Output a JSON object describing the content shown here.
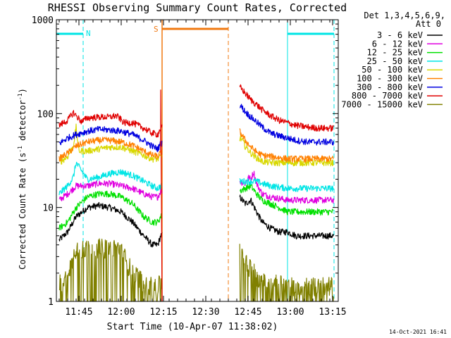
{
  "chart_data": {
    "type": "line",
    "title": "RHESSI Observing Summary Count Rates, Corrected",
    "xlabel": "Start Time (10-Apr-07 11:38:02)",
    "ylabel_main": "Corrected Count Rate (s",
    "ylabel_sup1": "-1",
    "ylabel_mid": " detector",
    "ylabel_sup2": "-1",
    "ylabel_end": ")",
    "yscale": "log",
    "xlim_minutes": [
      -1.0,
      99.0
    ],
    "ylim": [
      1,
      1000
    ],
    "x_ticks": [
      {
        "label": "11:45",
        "t": 7
      },
      {
        "label": "12:00",
        "t": 22
      },
      {
        "label": "12:15",
        "t": 37
      },
      {
        "label": "12:30",
        "t": 52
      },
      {
        "label": "12:45",
        "t": 67
      },
      {
        "label": "13:00",
        "t": 82
      },
      {
        "label": "13:15",
        "t": 97
      }
    ],
    "y_ticks": [
      {
        "label": "1",
        "v": 1
      },
      {
        "label": "10",
        "v": 10
      },
      {
        "label": "100",
        "v": 100
      },
      {
        "label": "1000",
        "v": 1000
      }
    ],
    "legend_header_1": "Det 1,3,4,5,6,9,",
    "legend_header_2": "Att 0",
    "legend_placement": "right",
    "timestamp": "14-Oct-2021 16:41",
    "night_marker": "N",
    "saa_marker": "S",
    "night_color": "#00e5e5",
    "saa_color": "#f07810",
    "night_intervals": [
      {
        "start": -1.0,
        "end": 8.5
      },
      {
        "start": 81.0,
        "end": 97.5
      }
    ],
    "saa_interval": {
      "start": 36.5,
      "end": 60.0
    },
    "data_gap": {
      "start": 36.5,
      "end": 64.0
    },
    "series": [
      {
        "name": "3 - 6 keV",
        "color": "#000000",
        "values_t": [
          0,
          3,
          6,
          10,
          14,
          18,
          22,
          26,
          30,
          33,
          35,
          36,
          64,
          66,
          68,
          70,
          72,
          75,
          78,
          81,
          84,
          88,
          92,
          97.5
        ],
        "values": [
          4.5,
          5.5,
          8,
          10,
          10.5,
          10,
          9,
          7,
          5,
          4,
          4,
          5,
          13,
          11,
          12,
          9,
          7,
          6,
          5.5,
          5.5,
          5,
          5,
          5,
          5
        ]
      },
      {
        "name": "6 - 12 keV",
        "color": "#e000e0",
        "values_t": [
          0,
          3,
          6,
          10,
          14,
          18,
          22,
          26,
          30,
          33,
          35,
          36,
          64,
          66,
          67,
          68,
          69,
          70,
          72,
          75,
          78,
          81,
          84,
          88,
          92,
          97.5
        ],
        "values": [
          12,
          14,
          17,
          17,
          18,
          18,
          17,
          16,
          14,
          13,
          13,
          15,
          19,
          18,
          21,
          20,
          24,
          18,
          14,
          13,
          12.5,
          12,
          12,
          12,
          12,
          12
        ]
      },
      {
        "name": "12 - 25 keV",
        "color": "#00e000",
        "values_t": [
          0,
          3,
          6,
          10,
          14,
          18,
          22,
          26,
          30,
          33,
          35,
          36,
          64,
          66,
          68,
          70,
          72,
          75,
          78,
          81,
          84,
          88,
          92,
          97.5
        ],
        "values": [
          6,
          7,
          10,
          13,
          14,
          14,
          13,
          11,
          8,
          7,
          7,
          8,
          15,
          16,
          17,
          14,
          12,
          11,
          10,
          9,
          9,
          9,
          9,
          9
        ]
      },
      {
        "name": "25 - 50 keV",
        "color": "#00e5e5",
        "values_t": [
          0,
          3,
          5,
          6,
          10,
          14,
          18,
          22,
          26,
          30,
          33,
          35,
          36,
          64,
          66,
          68,
          70,
          72,
          75,
          78,
          81,
          84,
          88,
          92,
          97.5
        ],
        "values": [
          14,
          17,
          21,
          30,
          20,
          21,
          23,
          24,
          22,
          19,
          17,
          16,
          17,
          19,
          19,
          19,
          19,
          18,
          17,
          16.5,
          16,
          16,
          16,
          16,
          16
        ]
      },
      {
        "name": "50 - 100 keV",
        "color": "#d8d800",
        "values_t": [
          0,
          3,
          5,
          6,
          7,
          10,
          14,
          18,
          22,
          26,
          30,
          33,
          35,
          36,
          64,
          65,
          66,
          68,
          70,
          72,
          75,
          78,
          81,
          84,
          88,
          92,
          97.5
        ],
        "values": [
          30,
          35,
          45,
          72,
          40,
          40,
          42,
          44,
          44,
          40,
          36,
          33,
          33,
          35,
          55,
          52,
          45,
          38,
          34,
          31,
          30,
          30,
          30,
          30,
          30,
          30,
          30
        ]
      },
      {
        "name": "100 - 300 keV",
        "color": "#ff8000",
        "values_t": [
          0,
          3,
          6,
          10,
          14,
          18,
          22,
          26,
          30,
          33,
          35,
          36,
          64,
          66,
          68,
          70,
          72,
          75,
          78,
          81,
          84,
          88,
          92,
          97.5
        ],
        "values": [
          33,
          38,
          45,
          50,
          52,
          52,
          50,
          46,
          40,
          36,
          35,
          38,
          65,
          52,
          44,
          39,
          36,
          35,
          34,
          33,
          33,
          33,
          33,
          33
        ]
      },
      {
        "name": "300 - 800 keV",
        "color": "#0000e0",
        "values_t": [
          0,
          3,
          6,
          10,
          14,
          18,
          22,
          26,
          30,
          33,
          35,
          36,
          64,
          66,
          68,
          70,
          72,
          75,
          78,
          81,
          84,
          88,
          92,
          97.5
        ],
        "values": [
          48,
          55,
          60,
          65,
          68,
          67,
          65,
          60,
          52,
          45,
          42,
          48,
          125,
          105,
          92,
          82,
          72,
          62,
          58,
          55,
          52,
          50,
          50,
          50
        ]
      },
      {
        "name": "800 - 7000 keV",
        "color": "#e00000",
        "values_t": [
          0,
          3,
          5,
          6,
          8,
          10,
          14,
          18,
          20,
          21,
          23,
          26,
          30,
          33,
          35,
          36,
          64,
          66,
          68,
          70,
          72,
          75,
          78,
          81,
          84,
          88,
          92,
          97.5
        ],
        "values": [
          75,
          85,
          103,
          95,
          82,
          90,
          92,
          92,
          95,
          92,
          80,
          80,
          70,
          62,
          60,
          70,
          195,
          165,
          140,
          125,
          110,
          95,
          85,
          80,
          75,
          72,
          70,
          70
        ]
      },
      {
        "name": "7000 - 15000 keV",
        "color": "#808000",
        "values_t": [
          0,
          2,
          3,
          5,
          6,
          8,
          10,
          14,
          18,
          20,
          22,
          24,
          26,
          28,
          30,
          33,
          35,
          36,
          64,
          65,
          66,
          68,
          70,
          72,
          74,
          76,
          78,
          80,
          84,
          88,
          92,
          97.5
        ],
        "values": [
          1.5,
          1.6,
          2,
          2.8,
          3.7,
          3.5,
          3.5,
          3.6,
          3.5,
          3.5,
          3.5,
          2.5,
          2,
          1.8,
          1.5,
          1.4,
          1.4,
          1.5,
          3.6,
          2.8,
          2.5,
          2.2,
          1.8,
          1.6,
          1.4,
          1.5,
          1.6,
          1.4,
          1.4,
          1.4,
          1.4,
          1.4
        ]
      }
    ]
  }
}
